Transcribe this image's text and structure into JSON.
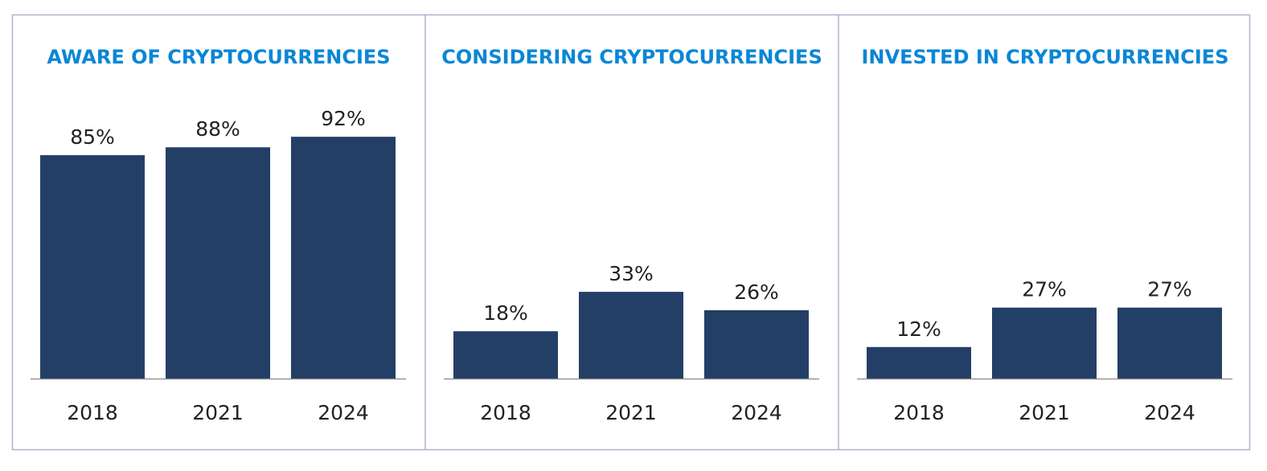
{
  "chart_data": [
    {
      "type": "bar",
      "title": "AWARE OF CRYPTOCURRENCIES",
      "categories": [
        "2018",
        "2021",
        "2024"
      ],
      "values": [
        85,
        88,
        92
      ],
      "value_labels": [
        "85%",
        "88%",
        "92%"
      ],
      "ylim": [
        0,
        100
      ],
      "grid": false
    },
    {
      "type": "bar",
      "title": "CONSIDERING CRYPTOCURRENCIES",
      "categories": [
        "2018",
        "2021",
        "2024"
      ],
      "values": [
        18,
        33,
        26
      ],
      "value_labels": [
        "18%",
        "33%",
        "26%"
      ],
      "ylim": [
        0,
        100
      ],
      "grid": false
    },
    {
      "type": "bar",
      "title": "INVESTED IN CRYPTOCURRENCIES",
      "categories": [
        "2018",
        "2021",
        "2024"
      ],
      "values": [
        12,
        27,
        27
      ],
      "value_labels": [
        "12%",
        "27%",
        "27%"
      ],
      "ylim": [
        0,
        100
      ],
      "grid": false
    }
  ],
  "colors": {
    "bar": "#233f66",
    "title": "#0a86d6",
    "border": "#a9b4c8",
    "axis": "#888888"
  }
}
